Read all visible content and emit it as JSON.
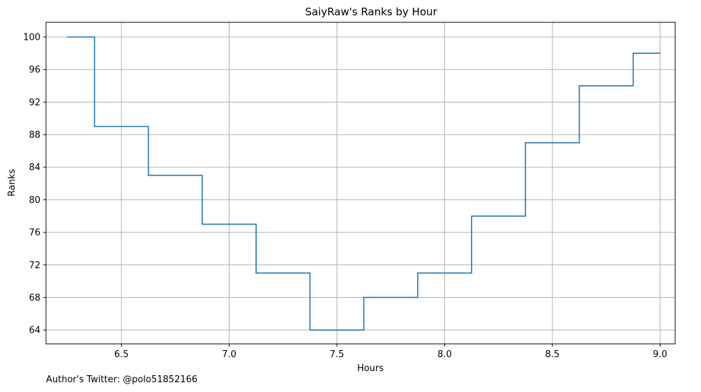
{
  "chart_data": {
    "type": "line",
    "drawstyle": "step-mid",
    "title": "SaiyRaw's Ranks by Hour",
    "xlabel": "Hours",
    "ylabel": "Ranks",
    "x": [
      6.25,
      6.5,
      6.75,
      7.0,
      7.25,
      7.5,
      7.75,
      8.0,
      8.25,
      8.5,
      8.75,
      9.0
    ],
    "series": [
      {
        "values": [
          100,
          89,
          83,
          77,
          71,
          64,
          68,
          71,
          78,
          87,
          94,
          98
        ],
        "color": "#1f77b4"
      }
    ],
    "xlim": [
      6.15,
      9.07
    ],
    "ylim": [
      101.8,
      62.3
    ],
    "y_inverted": true,
    "xticks": [
      6.5,
      7.0,
      7.5,
      8.0,
      8.5,
      9.0
    ],
    "xtick_labels": [
      "6.5",
      "7.0",
      "7.5",
      "8.0",
      "8.5",
      "9.0"
    ],
    "yticks": [
      64,
      68,
      72,
      76,
      80,
      84,
      88,
      92,
      96,
      100
    ],
    "ytick_labels": [
      "64",
      "68",
      "72",
      "76",
      "80",
      "84",
      "88",
      "92",
      "96",
      "100"
    ],
    "grid": true,
    "grid_color": "#b0b0b0"
  },
  "footnote": "Author's Twitter: @polo51852166"
}
